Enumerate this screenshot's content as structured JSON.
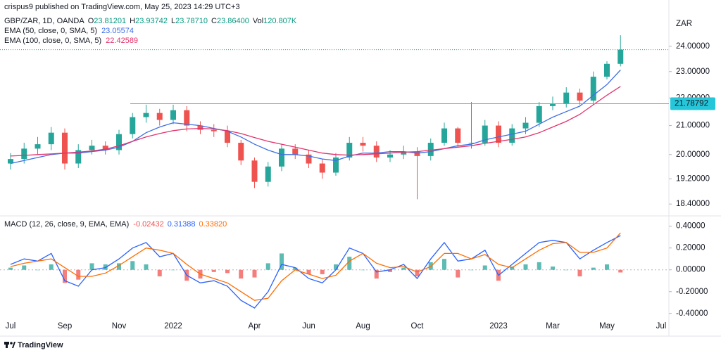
{
  "header": {
    "publisher": "crispus9 published on TradingView.com, May 25, 2023 14:29 UTC+3"
  },
  "footer": {
    "brand": "TradingView"
  },
  "chart_data": [
    {
      "type": "candlestick",
      "symbol": "GBP/ZAR, 1D, OANDA",
      "ohlc_legend": [
        {
          "label": "O",
          "value": "23.81201"
        },
        {
          "label": "H",
          "value": "23.93742"
        },
        {
          "label": "L",
          "value": "23.78710"
        },
        {
          "label": "C",
          "value": "23.86400"
        },
        {
          "label": "Vol",
          "value": "120.807K"
        }
      ],
      "unit": "ZAR",
      "log_scale": true,
      "ylim": [
        18.08,
        25.7
      ],
      "yticks": [
        {
          "value": 24,
          "label": "24.00000"
        },
        {
          "value": 23,
          "label": "23.00000"
        },
        {
          "value": 22,
          "label": "22.00000"
        },
        {
          "value": 21,
          "label": "21.00000"
        },
        {
          "value": 20,
          "label": "20.00000"
        },
        {
          "value": 19.2,
          "label": "19.20000"
        },
        {
          "value": 18.4,
          "label": "18.40000"
        }
      ],
      "up_color": "#26a69a",
      "down_color": "#ef5350",
      "open": [
        19.7,
        19.85,
        20.2,
        20.35,
        20.75,
        19.7,
        20.15,
        20.3,
        20.15,
        20.7,
        21.3,
        21.45,
        21.2,
        21.55,
        21.0,
        20.85,
        20.8,
        20.4,
        19.8,
        19.1,
        19.6,
        20.2,
        20.0,
        19.7,
        19.4,
        19.9,
        20.4,
        20.3,
        19.9,
        20.0,
        20.1,
        19.95,
        20.4,
        20.9,
        20.4,
        20.4,
        21.0,
        20.4,
        20.9,
        21.1,
        21.7,
        21.8,
        22.2,
        21.9,
        22.8,
        23.3,
        null,
        null,
        null
      ],
      "high": [
        20.05,
        20.4,
        20.6,
        20.95,
        20.9,
        20.35,
        20.5,
        20.45,
        20.85,
        21.45,
        21.75,
        21.6,
        21.75,
        21.7,
        21.15,
        21.05,
        21.0,
        20.5,
        19.9,
        19.75,
        20.35,
        20.35,
        20.15,
        19.85,
        20.05,
        20.6,
        20.6,
        20.45,
        20.15,
        20.3,
        20.25,
        20.55,
        21.1,
        20.95,
        21.85,
        21.2,
        21.15,
        21.05,
        21.3,
        21.85,
        22.05,
        22.4,
        22.35,
        23.0,
        23.4,
        24.45,
        null,
        null,
        null
      ],
      "low": [
        19.5,
        19.7,
        20.0,
        20.15,
        19.5,
        19.55,
        20.0,
        20.0,
        20.0,
        20.55,
        21.1,
        21.0,
        21.05,
        20.8,
        20.7,
        20.6,
        20.25,
        19.65,
        18.9,
        18.95,
        19.45,
        19.85,
        19.55,
        19.2,
        19.3,
        19.8,
        20.1,
        19.75,
        19.75,
        19.85,
        18.55,
        19.8,
        20.3,
        20.25,
        20.2,
        20.3,
        20.25,
        20.3,
        20.7,
        20.95,
        21.55,
        21.65,
        21.75,
        21.75,
        22.7,
        23.2,
        null,
        null,
        null
      ],
      "close": [
        19.85,
        20.2,
        20.35,
        20.75,
        19.7,
        20.15,
        20.3,
        20.15,
        20.7,
        21.3,
        21.45,
        21.2,
        21.55,
        21.0,
        20.85,
        20.8,
        20.4,
        19.8,
        19.1,
        19.6,
        20.2,
        20.0,
        19.7,
        19.4,
        19.9,
        20.4,
        20.3,
        19.9,
        20.0,
        20.1,
        19.95,
        20.4,
        20.9,
        20.4,
        20.4,
        21.0,
        20.4,
        20.9,
        21.1,
        21.7,
        21.8,
        22.2,
        21.9,
        22.8,
        23.3,
        23.864,
        null,
        null,
        null
      ],
      "series": [
        {
          "name": "EMA (50, close, 0, SMA, 5)",
          "value_label": "23.05574",
          "color": "#3f6fe6",
          "values": [
            19.7,
            19.8,
            19.9,
            20.0,
            20.05,
            20.05,
            20.1,
            20.15,
            20.25,
            20.45,
            20.75,
            20.95,
            21.1,
            21.05,
            21.0,
            20.9,
            20.8,
            20.6,
            20.35,
            20.15,
            20.0,
            20.0,
            19.95,
            19.85,
            19.8,
            19.95,
            20.05,
            20.05,
            20.1,
            20.1,
            20.05,
            20.1,
            20.2,
            20.3,
            20.35,
            20.5,
            20.6,
            20.7,
            20.8,
            21.05,
            21.3,
            21.5,
            21.7,
            22.1,
            22.5,
            23.06,
            null,
            null,
            null
          ]
        },
        {
          "name": "EMA (100, close, 0, SMA, 5)",
          "value_label": "22.42589",
          "color": "#e2336b",
          "values": [
            19.95,
            19.97,
            20.0,
            20.02,
            20.05,
            20.08,
            20.12,
            20.18,
            20.3,
            20.45,
            20.6,
            20.72,
            20.82,
            20.88,
            20.9,
            20.88,
            20.82,
            20.72,
            20.58,
            20.45,
            20.35,
            20.25,
            20.15,
            20.05,
            20.0,
            19.98,
            20.0,
            20.02,
            20.05,
            20.08,
            20.1,
            20.15,
            20.2,
            20.25,
            20.3,
            20.38,
            20.45,
            20.52,
            20.6,
            20.75,
            20.95,
            21.15,
            21.4,
            21.75,
            22.1,
            22.43,
            null,
            null,
            null
          ]
        }
      ],
      "level": {
        "value": 21.78792,
        "color": "#26c6da"
      }
    },
    {
      "type": "macd",
      "name": "MACD (12, 26, close, 9, EMA, EMA)",
      "categories": [
        "Jul",
        null,
        null,
        null,
        "Sep",
        null,
        null,
        null,
        "Nov",
        null,
        null,
        null,
        "2022",
        null,
        null,
        null,
        null,
        null,
        "Apr",
        null,
        null,
        null,
        "Jun",
        null,
        null,
        null,
        "Aug",
        null,
        null,
        null,
        "Oct",
        null,
        null,
        null,
        null,
        null,
        "2023",
        null,
        null,
        null,
        "Mar",
        null,
        null,
        null,
        "May",
        null,
        null,
        null,
        "Jul"
      ],
      "ylim": [
        -0.44,
        0.475
      ],
      "yticks": [
        {
          "value": 0.4,
          "label": "0.40000"
        },
        {
          "value": 0.2,
          "label": "0.20000"
        },
        {
          "value": 0,
          "label": "0.00000"
        },
        {
          "value": -0.2,
          "label": "-0.20000"
        },
        {
          "value": -0.4,
          "label": "-0.40000"
        }
      ],
      "histogram": {
        "value_label": "-0.02432",
        "up_color": "#26a69a",
        "down_color": "#ef5350",
        "values": [
          0.02,
          0.04,
          0,
          0.05,
          -0.12,
          -0.09,
          0.06,
          0.05,
          0.06,
          0.08,
          0.05,
          -0.06,
          0,
          -0.1,
          -0.08,
          -0.02,
          -0.03,
          -0.08,
          -0.07,
          0.06,
          0.15,
          0.02,
          -0.04,
          -0.04,
          0.05,
          0.12,
          0,
          -0.08,
          -0.02,
          0.02,
          -0.06,
          0.07,
          0.1,
          -0.07,
          0,
          0.04,
          -0.1,
          0.03,
          0.05,
          0.07,
          0.03,
          0,
          -0.06,
          0.02,
          0.05,
          -0.02432,
          null,
          null,
          null
        ]
      },
      "series": [
        {
          "value_label": "0.31388",
          "color": "#2962ff",
          "values": [
            0.05,
            0.1,
            0.08,
            0.15,
            -0.1,
            -0.15,
            0.0,
            0.02,
            0.1,
            0.2,
            0.25,
            0.12,
            0.15,
            -0.05,
            -0.12,
            -0.1,
            -0.15,
            -0.28,
            -0.35,
            -0.2,
            0.05,
            0.02,
            -0.08,
            -0.12,
            0.0,
            0.2,
            0.15,
            -0.02,
            0.0,
            0.05,
            -0.08,
            0.1,
            0.25,
            0.08,
            0.1,
            0.18,
            -0.05,
            0.05,
            0.15,
            0.25,
            0.27,
            0.25,
            0.1,
            0.18,
            0.25,
            0.31388,
            null,
            null,
            null
          ]
        },
        {
          "value_label": "0.33820",
          "color": "#ff6d00",
          "values": [
            0.03,
            0.06,
            0.08,
            0.1,
            0.02,
            -0.06,
            -0.06,
            -0.03,
            0.04,
            0.12,
            0.2,
            0.18,
            0.15,
            0.05,
            -0.04,
            -0.08,
            -0.12,
            -0.2,
            -0.28,
            -0.26,
            -0.1,
            0.0,
            -0.04,
            -0.08,
            -0.05,
            0.08,
            0.15,
            0.06,
            0.02,
            0.03,
            -0.02,
            0.03,
            0.15,
            0.15,
            0.1,
            0.14,
            0.05,
            0.02,
            0.1,
            0.18,
            0.24,
            0.25,
            0.16,
            0.16,
            0.2,
            0.3382,
            null,
            null,
            null
          ]
        }
      ]
    }
  ]
}
